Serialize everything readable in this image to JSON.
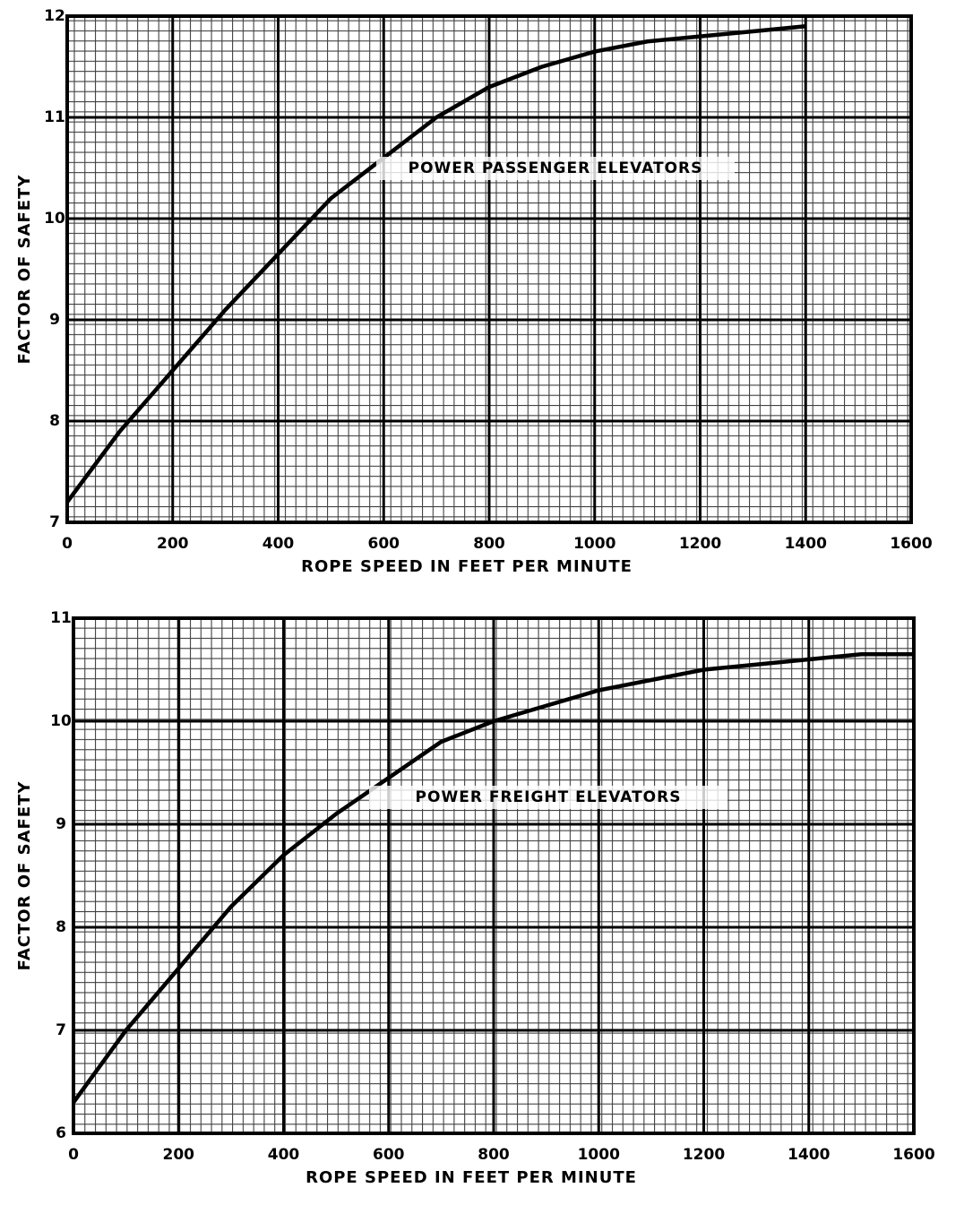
{
  "chart_data": [
    {
      "type": "line",
      "annotation": "POWER PASSENGER ELEVATORS",
      "xlabel": "ROPE SPEED IN FEET PER MINUTE",
      "ylabel": "FACTOR OF SAFETY",
      "x": [
        0,
        100,
        200,
        300,
        400,
        500,
        600,
        700,
        800,
        900,
        1000,
        1100,
        1200,
        1300,
        1400
      ],
      "values": [
        7.2,
        7.9,
        8.5,
        9.1,
        9.65,
        10.2,
        10.6,
        11.0,
        11.3,
        11.5,
        11.65,
        11.75,
        11.8,
        11.85,
        11.9
      ],
      "color": "#000000",
      "xlim": [
        0,
        1600
      ],
      "xticks": [
        0,
        200,
        400,
        600,
        800,
        1000,
        1200,
        1400,
        1600
      ],
      "ylim": [
        7,
        12
      ],
      "yticks": [
        7,
        8,
        9,
        10,
        11,
        12
      ],
      "grid": true
    },
    {
      "type": "line",
      "annotation": "POWER FREIGHT ELEVATORS",
      "xlabel": "ROPE SPEED IN FEET PER MINUTE",
      "ylabel": "FACTOR OF SAFETY",
      "x": [
        0,
        100,
        200,
        300,
        400,
        500,
        600,
        700,
        800,
        900,
        1000,
        1100,
        1200,
        1300,
        1400,
        1500,
        1600
      ],
      "values": [
        6.3,
        7.0,
        7.6,
        8.2,
        8.7,
        9.1,
        9.45,
        9.8,
        10.0,
        10.15,
        10.3,
        10.4,
        10.5,
        10.55,
        10.6,
        10.65,
        10.65
      ],
      "color": "#000000",
      "xlim": [
        0,
        1600
      ],
      "xticks": [
        0,
        200,
        400,
        600,
        800,
        1000,
        1200,
        1400,
        1600
      ],
      "ylim": [
        6,
        11
      ],
      "yticks": [
        6,
        7,
        8,
        9,
        10,
        11
      ],
      "grid": true
    }
  ]
}
